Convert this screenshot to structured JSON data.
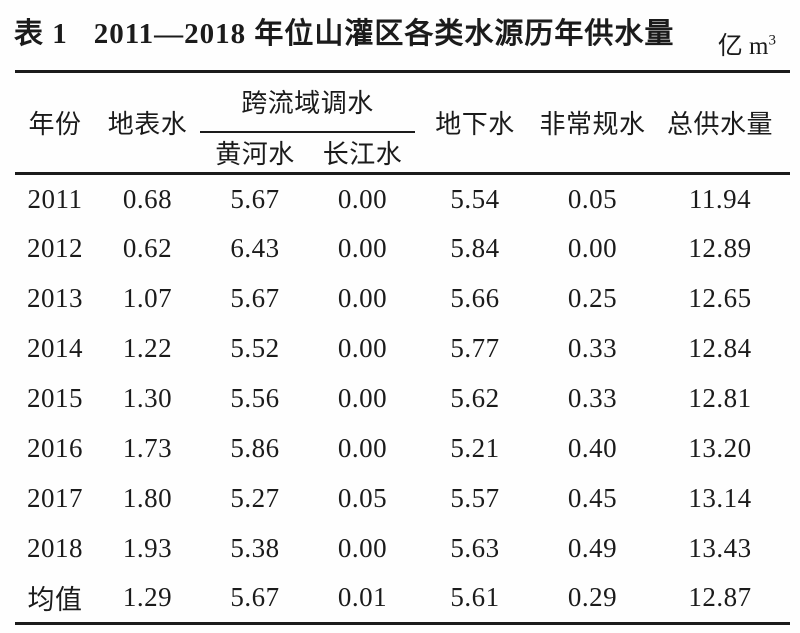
{
  "caption": {
    "label": "表 1",
    "title": "2011—2018 年位山灌区各类水源历年供水量"
  },
  "unit": {
    "base": "亿 m",
    "exponent": "3"
  },
  "table": {
    "header": {
      "year": "年份",
      "surface_water": "地表水",
      "transbasin_group": "跨流域调水",
      "yellow_river": "黄河水",
      "yangtze_river": "长江水",
      "groundwater": "地下水",
      "unconventional_water": "非常规水",
      "total_supply": "总供水量"
    },
    "rows": [
      [
        "2011",
        "0.68",
        "5.67",
        "0.00",
        "5.54",
        "0.05",
        "11.94"
      ],
      [
        "2012",
        "0.62",
        "6.43",
        "0.00",
        "5.84",
        "0.00",
        "12.89"
      ],
      [
        "2013",
        "1.07",
        "5.67",
        "0.00",
        "5.66",
        "0.25",
        "12.65"
      ],
      [
        "2014",
        "1.22",
        "5.52",
        "0.00",
        "5.77",
        "0.33",
        "12.84"
      ],
      [
        "2015",
        "1.30",
        "5.56",
        "0.00",
        "5.62",
        "0.33",
        "12.81"
      ],
      [
        "2016",
        "1.73",
        "5.86",
        "0.00",
        "5.21",
        "0.40",
        "13.20"
      ],
      [
        "2017",
        "1.80",
        "5.27",
        "0.05",
        "5.57",
        "0.45",
        "13.14"
      ],
      [
        "2018",
        "1.93",
        "5.38",
        "0.00",
        "5.63",
        "0.49",
        "13.43"
      ],
      [
        "均值",
        "1.29",
        "5.67",
        "0.01",
        "5.61",
        "0.29",
        "12.87"
      ]
    ]
  },
  "chart_data": {
    "type": "table",
    "title": "表 1 2011—2018 年位山灌区各类水源历年供水量",
    "unit": "亿 m³",
    "columns": [
      "年份",
      "地表水",
      "跨流域调水-黄河水",
      "跨流域调水-长江水",
      "地下水",
      "非常规水",
      "总供水量"
    ],
    "rows": [
      {
        "年份": "2011",
        "地表水": 0.68,
        "黄河水": 5.67,
        "长江水": 0.0,
        "地下水": 5.54,
        "非常规水": 0.05,
        "总供水量": 11.94
      },
      {
        "年份": "2012",
        "地表水": 0.62,
        "黄河水": 6.43,
        "长江水": 0.0,
        "地下水": 5.84,
        "非常规水": 0.0,
        "总供水量": 12.89
      },
      {
        "年份": "2013",
        "地表水": 1.07,
        "黄河水": 5.67,
        "长江水": 0.0,
        "地下水": 5.66,
        "非常规水": 0.25,
        "总供水量": 12.65
      },
      {
        "年份": "2014",
        "地表水": 1.22,
        "黄河水": 5.52,
        "长江水": 0.0,
        "地下水": 5.77,
        "非常规水": 0.33,
        "总供水量": 12.84
      },
      {
        "年份": "2015",
        "地表水": 1.3,
        "黄河水": 5.56,
        "长江水": 0.0,
        "地下水": 5.62,
        "非常规水": 0.33,
        "总供水量": 12.81
      },
      {
        "年份": "2016",
        "地表水": 1.73,
        "黄河水": 5.86,
        "长江水": 0.0,
        "地下水": 5.21,
        "非常规水": 0.4,
        "总供水量": 13.2
      },
      {
        "年份": "2017",
        "地表水": 1.8,
        "黄河水": 5.27,
        "长江水": 0.05,
        "地下水": 5.57,
        "非常规水": 0.45,
        "总供水量": 13.14
      },
      {
        "年份": "2018",
        "地表水": 1.93,
        "黄河水": 5.38,
        "长江水": 0.0,
        "地下水": 5.63,
        "非常规水": 0.49,
        "总供水量": 13.43
      },
      {
        "年份": "均值",
        "地表水": 1.29,
        "黄河水": 5.67,
        "长江水": 0.01,
        "地下水": 5.61,
        "非常规水": 0.29,
        "总供水量": 12.87
      }
    ]
  },
  "colors": {
    "text": "#1b1b1b",
    "rule": "#1c1c1c",
    "background": "#fefefe"
  }
}
